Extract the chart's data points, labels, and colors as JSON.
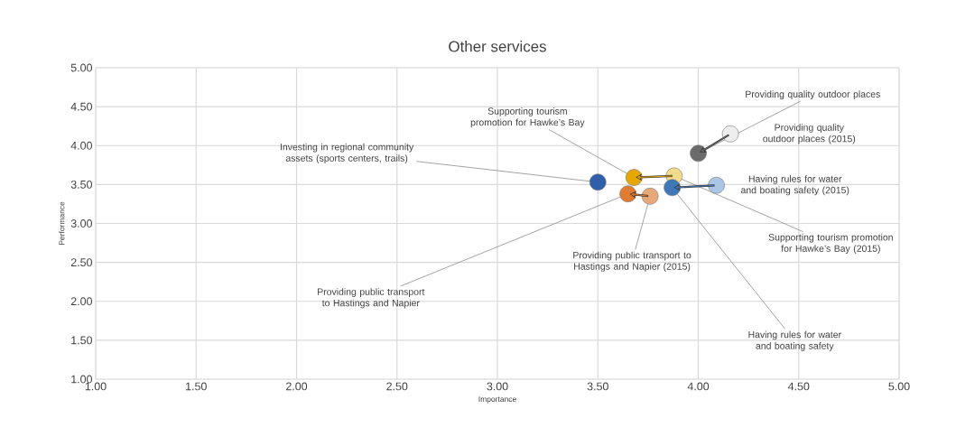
{
  "chart_data": {
    "type": "scatter",
    "title": "Other services",
    "xlabel": "Importance",
    "ylabel": "Performance",
    "xlim": [
      1,
      5
    ],
    "ylim": [
      1,
      5
    ],
    "xticks": [
      {
        "value": 1,
        "label": "1.00"
      },
      {
        "value": 1.5,
        "label": "1.50"
      },
      {
        "value": 2,
        "label": "2.00"
      },
      {
        "value": 2.5,
        "label": "2.50"
      },
      {
        "value": 3,
        "label": "3.00"
      },
      {
        "value": 3.5,
        "label": "3.50"
      },
      {
        "value": 4,
        "label": "4.00"
      },
      {
        "value": 4.5,
        "label": "4.50"
      },
      {
        "value": 5,
        "label": "5.00"
      }
    ],
    "yticks": [
      {
        "value": 1,
        "label": "1.00"
      },
      {
        "value": 1.5,
        "label": "1.50"
      },
      {
        "value": 2,
        "label": "2.00"
      },
      {
        "value": 2.5,
        "label": "2.50"
      },
      {
        "value": 3,
        "label": "3.00"
      },
      {
        "value": 3.5,
        "label": "3.50"
      },
      {
        "value": 4,
        "label": "4.00"
      },
      {
        "value": 4.5,
        "label": "4.50"
      },
      {
        "value": 5,
        "label": "5.00"
      }
    ],
    "grid": true,
    "series": [
      {
        "name": "Investing in regional community assets (sports centers, trails)",
        "color": "#2e5fa8",
        "x": [
          3.5
        ],
        "values": [
          3.53
        ]
      },
      {
        "name": "Supporting tourism promotion for Hawke’s Bay",
        "color": "#e6a800",
        "x": [
          3.68
        ],
        "values": [
          3.59
        ]
      },
      {
        "name": "Supporting tourism promotion for Hawke’s Bay (2015)",
        "color": "#f2dc8c",
        "x": [
          3.88
        ],
        "values": [
          3.61
        ]
      },
      {
        "name": "Providing public transport to Hastings and Napier",
        "color": "#e07b30",
        "x": [
          3.65
        ],
        "values": [
          3.38
        ]
      },
      {
        "name": "Providing public transport to Hastings and Napier (2015)",
        "color": "#e8a878",
        "x": [
          3.76
        ],
        "values": [
          3.35
        ]
      },
      {
        "name": "Having rules for water and boating safety",
        "color": "#3f78b8",
        "x": [
          3.87
        ],
        "values": [
          3.46
        ]
      },
      {
        "name": "Having rules for water and boating safety (2015)",
        "color": "#a9c6e6",
        "x": [
          4.09
        ],
        "values": [
          3.49
        ]
      },
      {
        "name": "Providing quality outdoor places",
        "color": "#6b6b6b",
        "x": [
          4.0
        ],
        "values": [
          3.9
        ]
      },
      {
        "name": "Providing quality outdoor places (2015)",
        "color": "#eeeeee",
        "x": [
          4.16
        ],
        "values": [
          4.15
        ]
      }
    ]
  }
}
